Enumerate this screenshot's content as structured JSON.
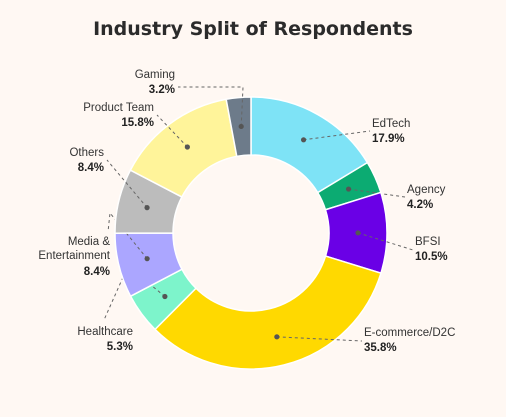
{
  "chart_data": {
    "type": "pie",
    "title": "Industry Split of Respondents",
    "donut": true,
    "slices": [
      {
        "label": "EdTech",
        "value": 17.9,
        "display": "17.9%",
        "color": "#7ee3f6"
      },
      {
        "label": "Agency",
        "value": 4.2,
        "display": "4.2%",
        "color": "#0cab72"
      },
      {
        "label": "BFSI",
        "value": 10.5,
        "display": "10.5%",
        "color": "#6a00e6"
      },
      {
        "label": "E-commerce/D2C",
        "value": 35.8,
        "display": "35.8%",
        "color": "#ffd900"
      },
      {
        "label": "Healthcare",
        "value": 5.3,
        "display": "5.3%",
        "color": "#7df4cb"
      },
      {
        "label": "Media & Entertainment",
        "value": 8.4,
        "display": "8.4%",
        "color": "#aba6ff"
      },
      {
        "label": "Others",
        "value": 8.4,
        "display": "8.4%",
        "color": "#bcbcbc"
      },
      {
        "label": "Product Team",
        "value": 15.8,
        "display": "15.8%",
        "color": "#fff49a"
      },
      {
        "label": "Gaming",
        "value": 3.2,
        "display": "3.2%",
        "color": "#6d7b8a"
      }
    ]
  }
}
